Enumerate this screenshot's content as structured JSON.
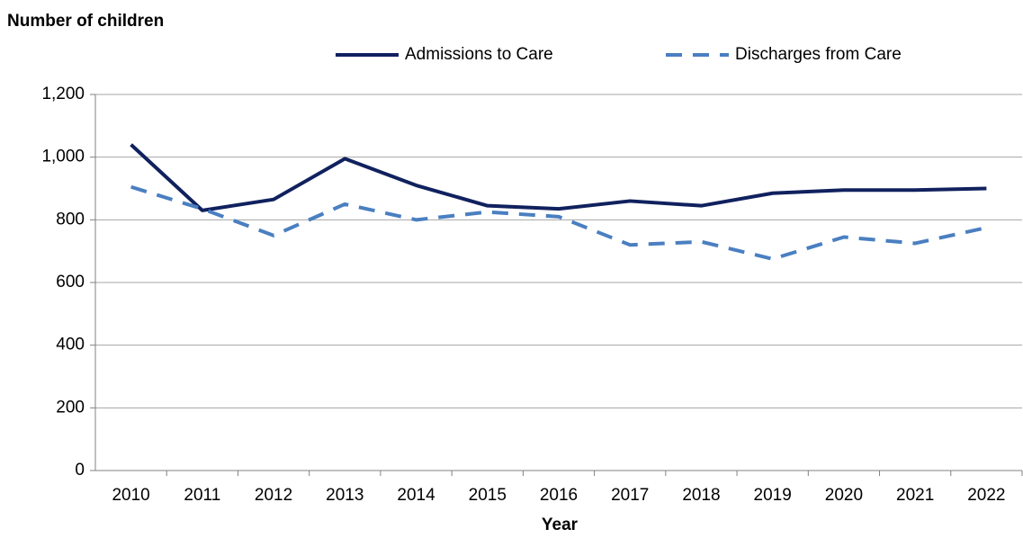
{
  "chart_data": {
    "type": "line",
    "title": "Number of children",
    "x_label": "Year",
    "categories": [
      "2010",
      "2011",
      "2012",
      "2013",
      "2014",
      "2015",
      "2016",
      "2017",
      "2018",
      "2019",
      "2020",
      "2021",
      "2022"
    ],
    "series": [
      {
        "name": "Admissions to Care",
        "color": "#10215e",
        "style": "solid",
        "values": [
          1040,
          830,
          865,
          995,
          910,
          845,
          835,
          860,
          845,
          885,
          895,
          895,
          900
        ]
      },
      {
        "name": "Discharges from Care",
        "color": "#4a7fc1",
        "style": "dashed",
        "values": [
          905,
          835,
          750,
          850,
          800,
          825,
          810,
          720,
          730,
          675,
          745,
          725,
          775
        ]
      }
    ],
    "ylim": [
      0,
      1200
    ],
    "yticks": [
      0,
      200,
      400,
      600,
      800,
      {
        "value": 1000,
        "label": "1,000"
      },
      {
        "value": 1200,
        "label": "1,200"
      }
    ],
    "grid": true,
    "legend": "top"
  }
}
